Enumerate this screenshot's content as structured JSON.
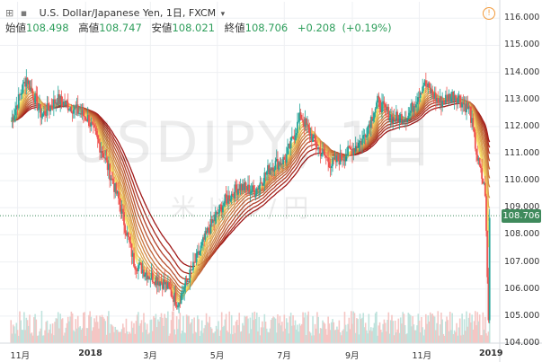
{
  "header": {
    "tools": "⊞ ▪",
    "title": "U.S. Dollar/Japanese Yen, 1日, FXCM",
    "alert_icon": "!"
  },
  "ohlc": {
    "open_label": "始値",
    "open": "108.498",
    "high_label": "高値",
    "high": "108.747",
    "low_label": "安値",
    "low": "108.021",
    "close_label": "終値",
    "close": "108.706",
    "change": "+0.208",
    "change_pct": "(+0.19%)"
  },
  "watermark": {
    "symbol": "USDJPY, 1日",
    "subtitle": "米ドル/円"
  },
  "price_tag": "108.706",
  "colors": {
    "up": "#26a69a",
    "down": "#ef5350",
    "vol_up": "#bfe3dd",
    "vol_down": "#f5c6c4",
    "ribbon_slow": "#a01818",
    "ribbon_fast": "#f8e36a",
    "last_line": "#3f8a5c"
  },
  "chart_data": {
    "type": "line",
    "symbol": "USDJPY",
    "y_ticks": [
      "116.000",
      "115.000",
      "114.000",
      "113.000",
      "112.000",
      "111.000",
      "110.000",
      "109.000",
      "108.000",
      "107.000",
      "106.000",
      "105.000",
      "104.000"
    ],
    "x_ticks": [
      "11月",
      "2018",
      "3月",
      "5月",
      "7月",
      "9月",
      "11月",
      "2019"
    ],
    "ylim": [
      104,
      116.5
    ],
    "x": [
      "2017-10-25",
      "2017-11-08",
      "2017-11-22",
      "2017-12-06",
      "2017-12-20",
      "2018-01-03",
      "2018-01-17",
      "2018-01-31",
      "2018-02-14",
      "2018-02-28",
      "2018-03-14",
      "2018-03-26",
      "2018-04-09",
      "2018-04-23",
      "2018-05-07",
      "2018-05-21",
      "2018-06-04",
      "2018-06-18",
      "2018-07-02",
      "2018-07-16",
      "2018-07-30",
      "2018-08-13",
      "2018-08-27",
      "2018-09-10",
      "2018-09-24",
      "2018-10-08",
      "2018-10-22",
      "2018-11-05",
      "2018-11-19",
      "2018-12-03",
      "2018-12-17",
      "2018-12-24",
      "2018-12-31",
      "2019-01-03",
      "2019-01-04"
    ],
    "close": [
      112.2,
      113.8,
      112.4,
      113.0,
      112.7,
      112.3,
      111.0,
      109.3,
      107.0,
      106.5,
      106.2,
      105.5,
      106.8,
      108.2,
      109.2,
      109.8,
      109.6,
      110.5,
      110.8,
      112.4,
      111.3,
      110.6,
      111.0,
      111.5,
      112.9,
      112.3,
      112.4,
      113.6,
      112.9,
      113.2,
      112.6,
      110.8,
      109.6,
      104.8,
      108.706
    ],
    "ribbon_note": "12 moving averages, fast (yellow) to slow (dark red)",
    "last_price": 108.706
  }
}
